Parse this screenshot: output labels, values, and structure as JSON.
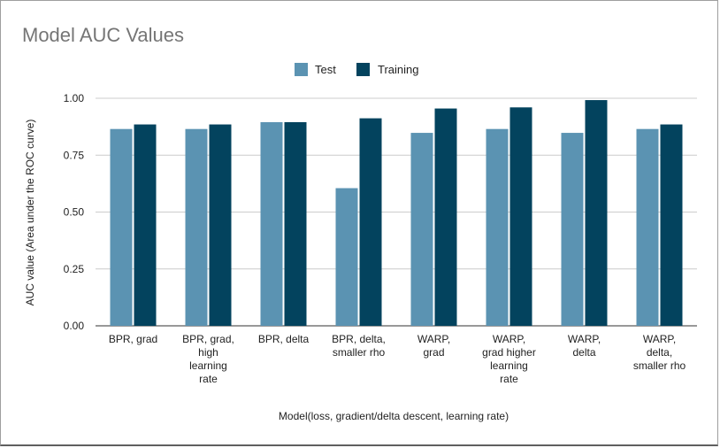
{
  "chart_data": {
    "type": "bar",
    "title": "Model AUC Values",
    "xlabel": "Model(loss, gradient/delta descent, learning rate)",
    "ylabel": "AUC value (Area under the ROC curve)",
    "ylim": [
      0,
      1
    ],
    "yticks": [
      "0.00",
      "0.25",
      "0.50",
      "0.75",
      "1.00"
    ],
    "ytick_values": [
      0,
      0.25,
      0.5,
      0.75,
      1.0
    ],
    "categories": [
      [
        "BPR, grad"
      ],
      [
        "BPR, grad,",
        "high",
        "learning",
        "rate"
      ],
      [
        "BPR, delta"
      ],
      [
        "BPR, delta,",
        "smaller rho"
      ],
      [
        "WARP,",
        "grad"
      ],
      [
        "WARP,",
        "grad higher",
        "learning",
        "rate"
      ],
      [
        "WARP,",
        "delta"
      ],
      [
        "WARP,",
        "delta,",
        "smaller rho"
      ]
    ],
    "series": [
      {
        "name": "Test",
        "color": "#5b93b2",
        "values": [
          0.865,
          0.865,
          0.895,
          0.605,
          0.848,
          0.865,
          0.848,
          0.865
        ]
      },
      {
        "name": "Training",
        "color": "#03435e",
        "values": [
          0.885,
          0.885,
          0.895,
          0.912,
          0.955,
          0.96,
          0.992,
          0.885
        ]
      }
    ],
    "legend_position": "top-center",
    "grid": true
  }
}
